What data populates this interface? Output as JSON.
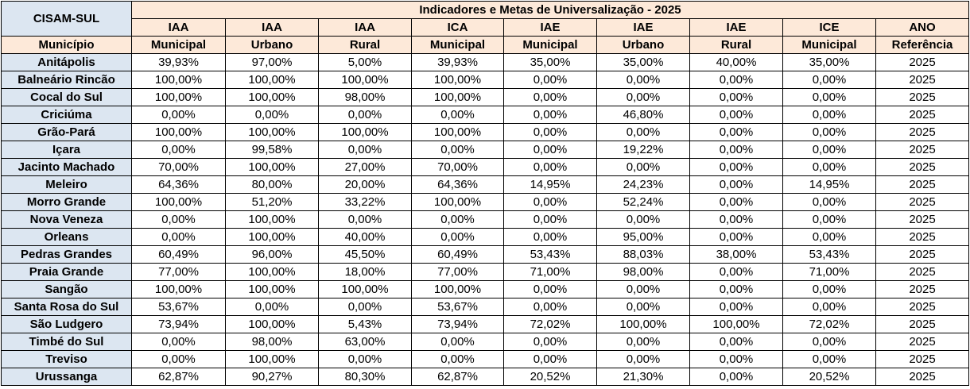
{
  "corner_label": "CISAM-SUL",
  "title": "Indicadores e Metas de Universalização - 2025",
  "municipio_label": "Município",
  "columns": [
    {
      "top": "IAA",
      "sub": "Municipal"
    },
    {
      "top": "IAA",
      "sub": "Urbano"
    },
    {
      "top": "IAA",
      "sub": "Rural"
    },
    {
      "top": "ICA",
      "sub": "Municipal"
    },
    {
      "top": "IAE",
      "sub": "Municipal"
    },
    {
      "top": "IAE",
      "sub": "Urbano"
    },
    {
      "top": "IAE",
      "sub": "Rural"
    },
    {
      "top": "ICE",
      "sub": "Municipal"
    },
    {
      "top": "ANO",
      "sub": "Referência"
    }
  ],
  "rows": [
    {
      "municipio": "Anitápolis",
      "values": [
        "39,93%",
        "97,00%",
        "5,00%",
        "39,93%",
        "35,00%",
        "35,00%",
        "40,00%",
        "35,00%",
        "2025"
      ]
    },
    {
      "municipio": "Balneário Rincão",
      "values": [
        "100,00%",
        "100,00%",
        "100,00%",
        "100,00%",
        "0,00%",
        "0,00%",
        "0,00%",
        "0,00%",
        "2025"
      ]
    },
    {
      "municipio": "Cocal do Sul",
      "values": [
        "100,00%",
        "100,00%",
        "98,00%",
        "100,00%",
        "0,00%",
        "0,00%",
        "0,00%",
        "0,00%",
        "2025"
      ]
    },
    {
      "municipio": "Criciúma",
      "values": [
        "0,00%",
        "0,00%",
        "0,00%",
        "0,00%",
        "0,00%",
        "46,80%",
        "0,00%",
        "0,00%",
        "2025"
      ]
    },
    {
      "municipio": "Grão-Pará",
      "values": [
        "100,00%",
        "100,00%",
        "100,00%",
        "100,00%",
        "0,00%",
        "0,00%",
        "0,00%",
        "0,00%",
        "2025"
      ]
    },
    {
      "municipio": "Içara",
      "values": [
        "0,00%",
        "99,58%",
        "0,00%",
        "0,00%",
        "0,00%",
        "19,22%",
        "0,00%",
        "0,00%",
        "2025"
      ]
    },
    {
      "municipio": "Jacinto Machado",
      "values": [
        "70,00%",
        "100,00%",
        "27,00%",
        "70,00%",
        "0,00%",
        "0,00%",
        "0,00%",
        "0,00%",
        "2025"
      ]
    },
    {
      "municipio": "Meleiro",
      "values": [
        "64,36%",
        "80,00%",
        "20,00%",
        "64,36%",
        "14,95%",
        "24,23%",
        "0,00%",
        "14,95%",
        "2025"
      ]
    },
    {
      "municipio": "Morro Grande",
      "values": [
        "100,00%",
        "51,20%",
        "33,22%",
        "100,00%",
        "0,00%",
        "52,24%",
        "0,00%",
        "0,00%",
        "2025"
      ]
    },
    {
      "municipio": "Nova Veneza",
      "values": [
        "0,00%",
        "100,00%",
        "0,00%",
        "0,00%",
        "0,00%",
        "0,00%",
        "0,00%",
        "0,00%",
        "2025"
      ]
    },
    {
      "municipio": "Orleans",
      "values": [
        "0,00%",
        "100,00%",
        "40,00%",
        "0,00%",
        "0,00%",
        "95,00%",
        "0,00%",
        "0,00%",
        "2025"
      ]
    },
    {
      "municipio": "Pedras Grandes",
      "values": [
        "60,49%",
        "96,00%",
        "45,50%",
        "60,49%",
        "53,43%",
        "88,03%",
        "38,00%",
        "53,43%",
        "2025"
      ]
    },
    {
      "municipio": "Praia Grande",
      "values": [
        "77,00%",
        "100,00%",
        "18,00%",
        "77,00%",
        "71,00%",
        "98,00%",
        "0,00%",
        "71,00%",
        "2025"
      ]
    },
    {
      "municipio": "Sangão",
      "values": [
        "100,00%",
        "100,00%",
        "100,00%",
        "100,00%",
        "0,00%",
        "0,00%",
        "0,00%",
        "0,00%",
        "2025"
      ]
    },
    {
      "municipio": "Santa Rosa do Sul",
      "values": [
        "53,67%",
        "0,00%",
        "0,00%",
        "53,67%",
        "0,00%",
        "0,00%",
        "0,00%",
        "0,00%",
        "2025"
      ]
    },
    {
      "municipio": "São Ludgero",
      "values": [
        "73,94%",
        "100,00%",
        "5,43%",
        "73,94%",
        "72,02%",
        "100,00%",
        "100,00%",
        "72,02%",
        "2025"
      ]
    },
    {
      "municipio": "Timbé do Sul",
      "values": [
        "0,00%",
        "98,00%",
        "63,00%",
        "0,00%",
        "0,00%",
        "0,00%",
        "0,00%",
        "0,00%",
        "2025"
      ]
    },
    {
      "municipio": "Treviso",
      "values": [
        "0,00%",
        "100,00%",
        "0,00%",
        "0,00%",
        "0,00%",
        "0,00%",
        "0,00%",
        "0,00%",
        "2025"
      ]
    },
    {
      "municipio": "Urussanga",
      "values": [
        "62,87%",
        "90,27%",
        "80,30%",
        "62,87%",
        "20,52%",
        "21,30%",
        "0,00%",
        "20,52%",
        "2025"
      ]
    }
  ]
}
